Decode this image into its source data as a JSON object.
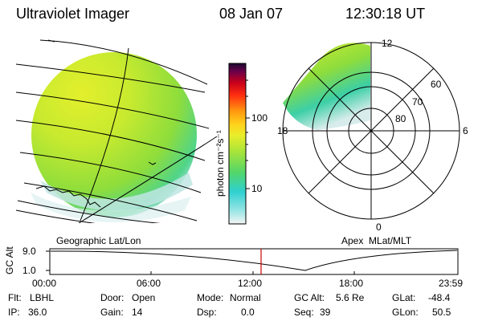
{
  "header": {
    "instrument": "Ultraviolet Imager",
    "date": "08 Jan 07",
    "time": "12:30:18 UT"
  },
  "colorbar": {
    "unit_label": "photon cm⁻²s⁻¹",
    "ticks": [
      "100",
      "10"
    ],
    "scale": "log"
  },
  "geo_panel": {
    "label": "Geographic Lat/Lon"
  },
  "polar_panel": {
    "label": "Apex  MLat/MLT",
    "mlt_labels": [
      "12",
      "18",
      "6",
      "0"
    ],
    "lat_labels": [
      "60",
      "70",
      "80"
    ]
  },
  "timeline": {
    "ylabel": "GC Alt",
    "yticks": [
      "9.0",
      "1.0"
    ],
    "xticks": [
      "00:00",
      "06:00",
      "12:00",
      "18:00",
      "23:59"
    ],
    "current_time_marker": "12:30",
    "marker_color": "#cc0000"
  },
  "status": {
    "row1": [
      {
        "key": "Flt:",
        "value": "LBHL"
      },
      {
        "key": "Door:",
        "value": "Open"
      },
      {
        "key": "Mode:",
        "value": "Normal"
      },
      {
        "key": "GC Alt:",
        "value": "5.6 Re"
      },
      {
        "key": "GLat:",
        "value": "-48.4"
      }
    ],
    "row2": [
      {
        "key": "IP:",
        "value": "36.0"
      },
      {
        "key": "Gain:",
        "value": "14"
      },
      {
        "key": "Dsp:",
        "value": "0.0"
      },
      {
        "key": "Seq:",
        "value": "39"
      },
      {
        "key": "GLon:",
        "value": "50.5"
      }
    ]
  }
}
